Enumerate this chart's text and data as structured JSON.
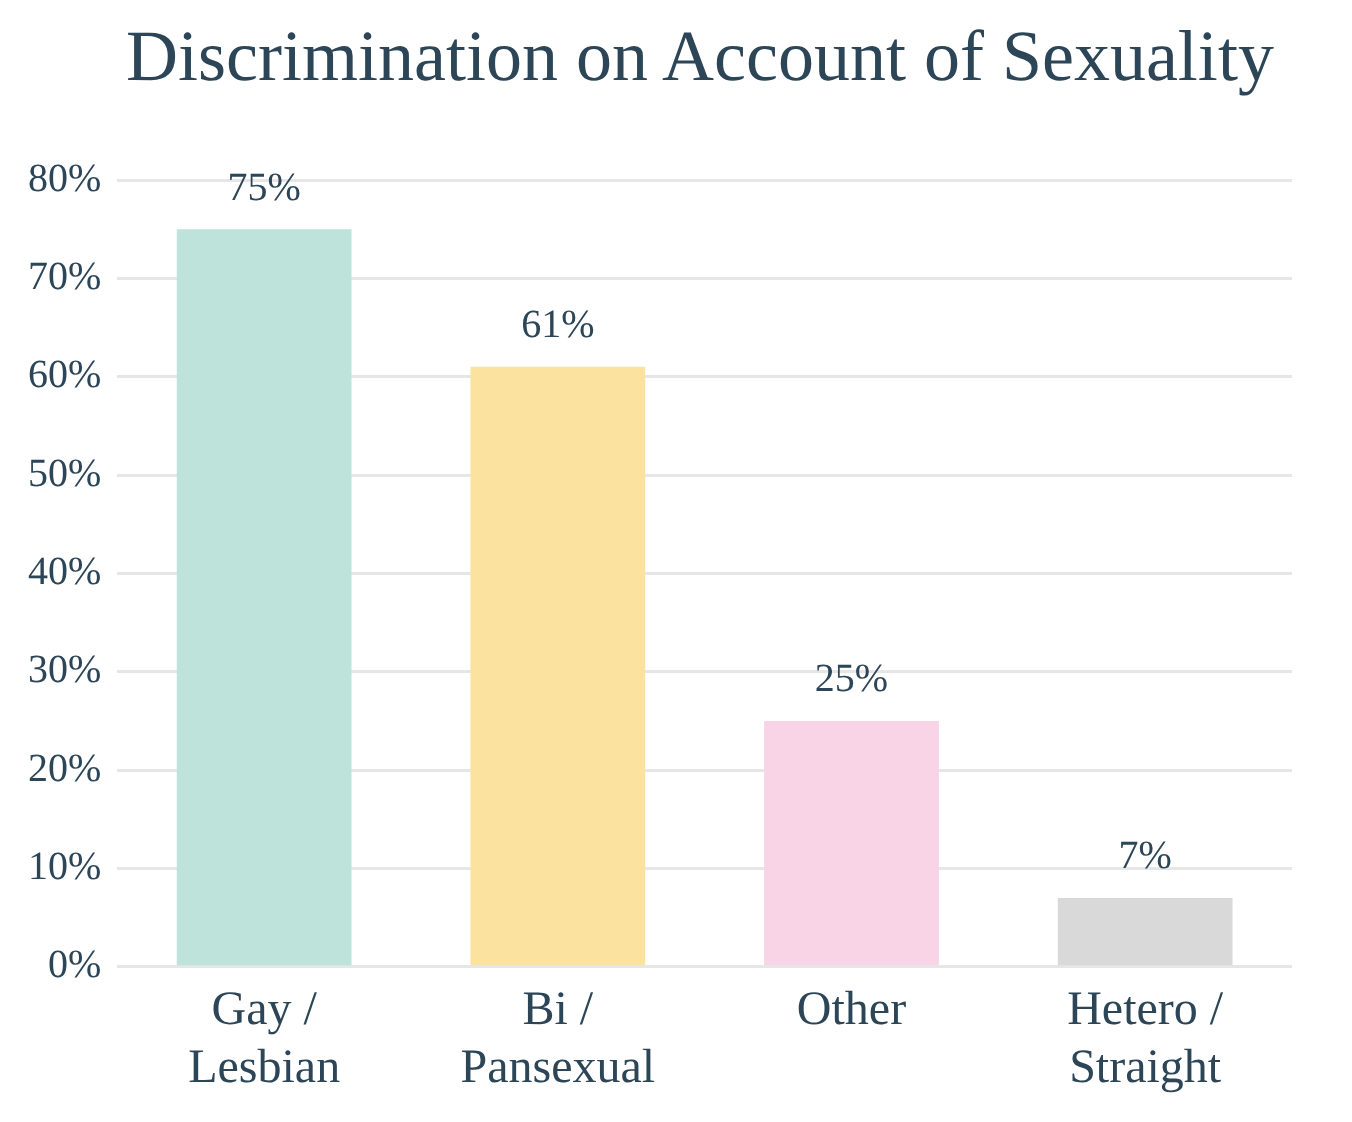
{
  "chart_data": {
    "type": "bar",
    "title": "Discrimination on Account of Sexuality",
    "categories": [
      "Gay / Lesbian",
      "Bi / Pansexual",
      "Other",
      "Hetero / Straight"
    ],
    "values": [
      75,
      61,
      25,
      7
    ],
    "colors": [
      "#bde3da",
      "#fbe29e",
      "#f9d3e6",
      "#d9d9d9"
    ],
    "value_labels": [
      "75%",
      "61%",
      "25%",
      "7%"
    ],
    "ylim": [
      0,
      80
    ],
    "yticks": [
      {
        "value": 0,
        "label": "0%"
      },
      {
        "value": 10,
        "label": "10%"
      },
      {
        "value": 20,
        "label": "20%"
      },
      {
        "value": 30,
        "label": "30%"
      },
      {
        "value": 40,
        "label": "40%"
      },
      {
        "value": 50,
        "label": "50%"
      },
      {
        "value": 60,
        "label": "60%"
      },
      {
        "value": 70,
        "label": "70%"
      },
      {
        "value": 80,
        "label": "80%"
      }
    ],
    "grid": "y",
    "legend": false
  }
}
